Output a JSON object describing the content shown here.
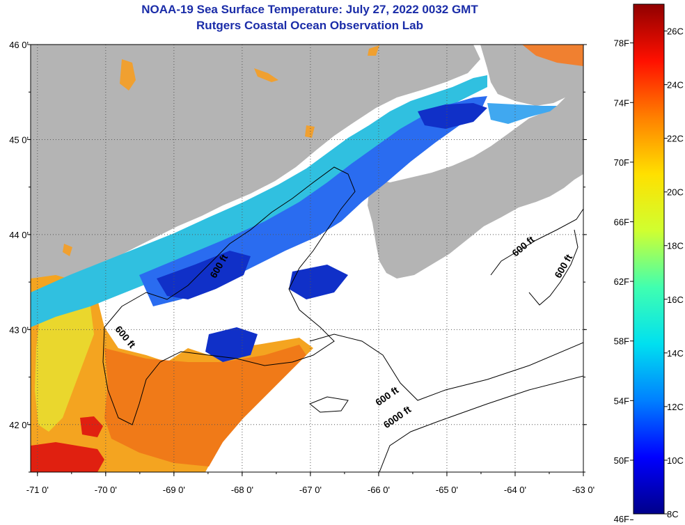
{
  "title": "NOAA-19 Sea Surface Temperature:  July 27, 2022 0032 GMT",
  "subtitle": "Rutgers Coastal Ocean Observation Lab",
  "map": {
    "lon_range": [
      -71.1,
      -63.0
    ],
    "lat_range": [
      41.5,
      46.0
    ],
    "lon_ticks": [
      {
        "v": -71,
        "label": "-71 0'"
      },
      {
        "v": -70,
        "label": "-70 0'"
      },
      {
        "v": -69,
        "label": "-69 0'"
      },
      {
        "v": -68,
        "label": "-68 0'"
      },
      {
        "v": -67,
        "label": "-67 0'"
      },
      {
        "v": -66,
        "label": "-66 0'"
      },
      {
        "v": -65,
        "label": "-65 0'"
      },
      {
        "v": -64,
        "label": "-64 0'"
      },
      {
        "v": -63,
        "label": "-63 0'"
      }
    ],
    "lat_ticks": [
      {
        "v": 46,
        "label": "46 0'"
      },
      {
        "v": 45,
        "label": "45 0'"
      },
      {
        "v": 44,
        "label": "44 0'"
      },
      {
        "v": 43,
        "label": "43 0'"
      },
      {
        "v": 42,
        "label": "42 0'"
      }
    ],
    "contour_labels": [
      {
        "text": "600 ft",
        "lon": -68.3,
        "lat": 43.65,
        "rot": -60
      },
      {
        "text": "600 ft",
        "lon": -69.75,
        "lat": 42.9,
        "rot": 50
      },
      {
        "text": "600 ft",
        "lon": -63.85,
        "lat": 43.85,
        "rot": -40
      },
      {
        "text": "600 ft",
        "lon": -63.25,
        "lat": 43.65,
        "rot": -60
      },
      {
        "text": "600 ft",
        "lon": -65.85,
        "lat": 42.27,
        "rot": -35
      },
      {
        "text": "6000 ft",
        "lon": -65.7,
        "lat": 42.05,
        "rot": -35
      }
    ],
    "colors": {
      "land": "#b4b4b4",
      "no_data": "#ffffff",
      "grid": "#555555"
    }
  },
  "colorbar": {
    "min_c": 8,
    "max_c": 27,
    "fahrenheit_labels": [
      "78F",
      "74F",
      "70F",
      "66F",
      "62F",
      "58F",
      "54F",
      "50F",
      "46F"
    ],
    "fahrenheit_values": [
      78,
      74,
      70,
      66,
      62,
      58,
      54,
      50,
      46
    ],
    "celsius_labels": [
      "26C",
      "24C",
      "22C",
      "20C",
      "18C",
      "16C",
      "14C",
      "12C",
      "10C",
      "8C"
    ],
    "celsius_values": [
      26,
      24,
      22,
      20,
      18,
      16,
      14,
      12,
      10,
      8
    ],
    "stops": [
      "#00008a",
      "#0000ff",
      "#0080ff",
      "#00e0f0",
      "#40ffb0",
      "#d0ff30",
      "#ffe000",
      "#ff8000",
      "#ff1000",
      "#900000"
    ]
  }
}
